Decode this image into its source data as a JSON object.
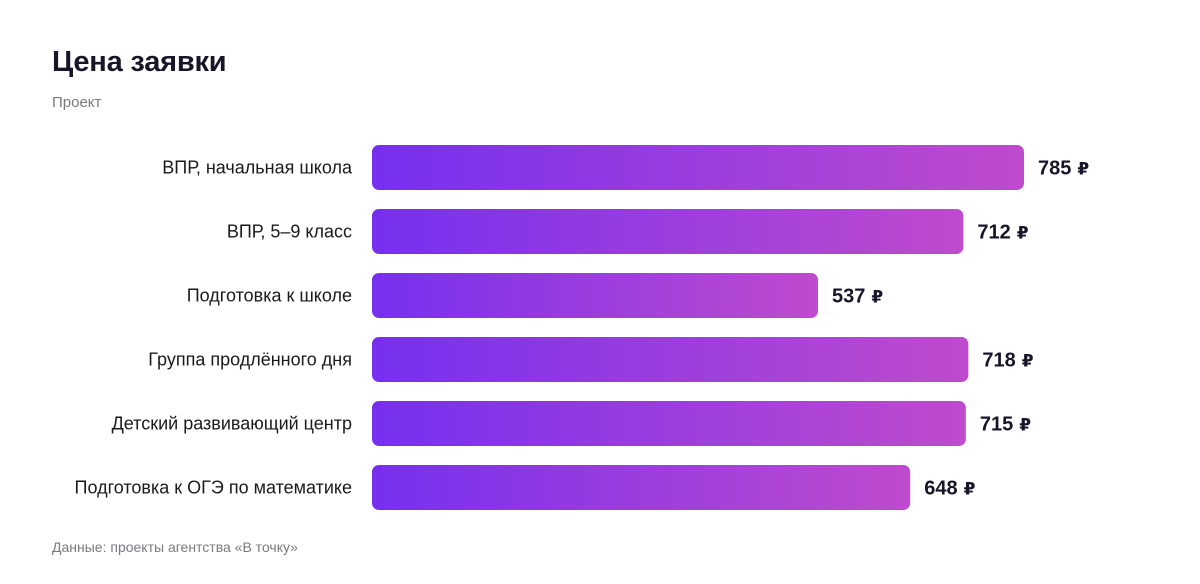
{
  "header": {
    "title": "Цена заявки",
    "subtitle": "Проект"
  },
  "footer": {
    "note": "Данные: проекты агентства «В точку»"
  },
  "colors": {
    "bar_start": "#7630ef",
    "bar_end": "#bf4bcd"
  },
  "chart_data": {
    "type": "bar",
    "orientation": "horizontal",
    "title": "Цена заявки",
    "subtitle": "Проект",
    "unit": "₽",
    "categories": [
      "ВПР, начальная школа",
      "ВПР, 5–9 класс",
      "Подготовка к школе",
      "Группа продлённого дня",
      "Детский развивающий центр",
      "Подготовка к ОГЭ по математике"
    ],
    "values": [
      785,
      712,
      537,
      718,
      715,
      648
    ],
    "xlim": [
      0,
      785
    ],
    "grid": false,
    "legend": "none"
  }
}
